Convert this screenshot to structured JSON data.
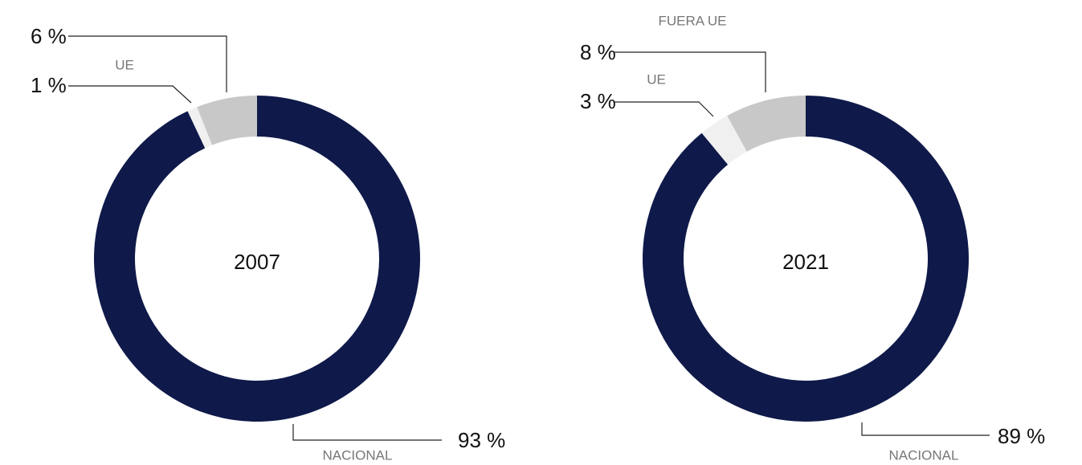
{
  "chart_data": [
    {
      "type": "pie",
      "donut": true,
      "title": "2007",
      "categories": [
        "NACIONAL",
        "UE",
        null
      ],
      "values": [
        93,
        1,
        6
      ],
      "value_labels": [
        "93 %",
        "1 %",
        "6 %"
      ],
      "colors": [
        "#0f1a4a",
        "#f0f0f0",
        "#c8c8c8"
      ]
    },
    {
      "type": "pie",
      "donut": true,
      "title": "2021",
      "categories": [
        "NACIONAL",
        "UE",
        "FUERA UE"
      ],
      "values": [
        89,
        3,
        8
      ],
      "value_labels": [
        "89 %",
        "3 %",
        "8 %"
      ],
      "colors": [
        "#0f1a4a",
        "#f0f0f0",
        "#c8c8c8"
      ]
    }
  ]
}
